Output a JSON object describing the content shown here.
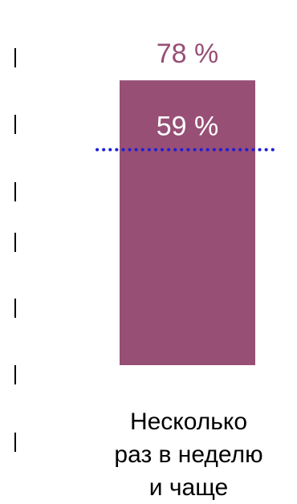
{
  "chart_data": {
    "type": "bar",
    "categories": [
      "Несколько раз в неделю и чаще"
    ],
    "category_lines": [
      "Несколько",
      "раз в неделю",
      "и чаще"
    ],
    "values": [
      78
    ],
    "value_labels": [
      "78 %"
    ],
    "reference": {
      "value": 59,
      "label": "59 %",
      "style": "dotted"
    },
    "ylim": [
      0,
      100
    ],
    "colors": {
      "bar": "#974f75",
      "bar_label": "#974f75",
      "reference_line": "#1f1fd6",
      "reference_label": "#ffffff",
      "axis_ticks": "#000000"
    }
  }
}
